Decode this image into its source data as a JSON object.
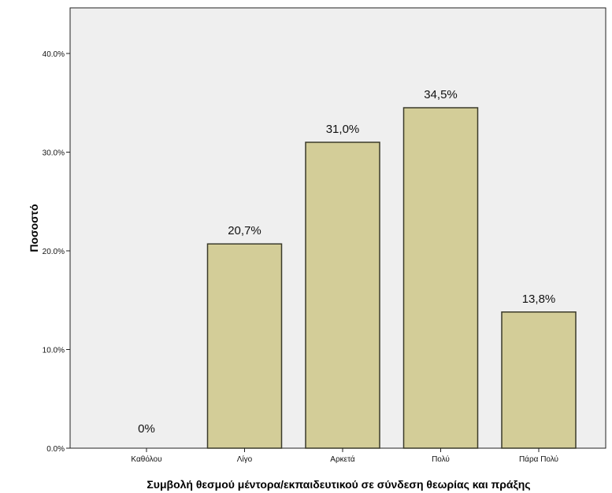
{
  "chart_data": {
    "type": "bar",
    "title": "",
    "xlabel": "Συμβολή θεσμού μέντορα/εκπαιδευτικού σε σύνδεση θεωρίας και πράξης",
    "ylabel": "Ποσοστό",
    "categories": [
      "Καθόλου",
      "Λίγο",
      "Αρκετά",
      "Πολύ",
      "Πάρα Πολύ"
    ],
    "values": [
      0,
      20.7,
      31.0,
      34.5,
      13.8
    ],
    "value_labels": [
      "0%",
      "20,7%",
      "31,0%",
      "34,5%",
      "13,8%"
    ],
    "yticks": [
      0,
      10,
      20,
      30,
      40
    ],
    "ytick_labels": [
      "0.0%",
      "10.0%",
      "20.0%",
      "30.0%",
      "40.0%"
    ],
    "ylim": [
      0,
      45
    ],
    "grid": false,
    "colors": {
      "bar_fill": "#d3cd98",
      "bar_stroke": "#3a3a2a",
      "plot_background": "#efefef"
    }
  }
}
